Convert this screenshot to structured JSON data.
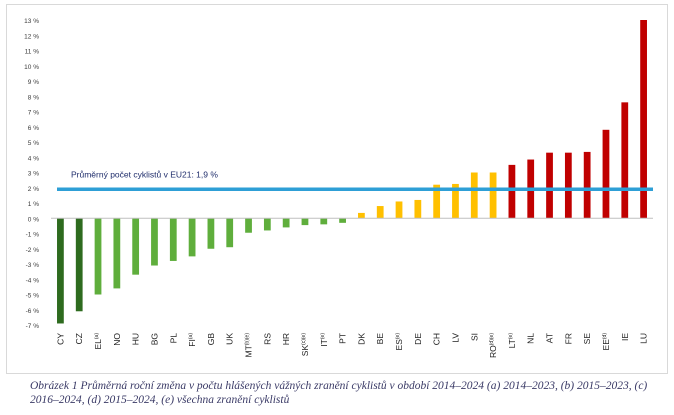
{
  "chart_data": {
    "type": "bar",
    "categories": [
      "CY",
      "CZ",
      "EL",
      "NO",
      "HU",
      "BG",
      "PL",
      "FI",
      "GB",
      "UK",
      "MT",
      "RS",
      "HR",
      "SK",
      "IT",
      "PT",
      "DK",
      "BE",
      "ES",
      "DE",
      "CH",
      "LV",
      "SI",
      "RO",
      "LT",
      "NL",
      "AT",
      "FR",
      "SE",
      "EE",
      "IE",
      "LU"
    ],
    "category_labels": [
      {
        "base": "CY",
        "sup": ""
      },
      {
        "base": "CZ",
        "sup": ""
      },
      {
        "base": "EL",
        "sup": "(a)"
      },
      {
        "base": "NO",
        "sup": ""
      },
      {
        "base": "HU",
        "sup": ""
      },
      {
        "base": "BG",
        "sup": ""
      },
      {
        "base": "PL",
        "sup": ""
      },
      {
        "base": "FI",
        "sup": "(a)"
      },
      {
        "base": "GB",
        "sup": ""
      },
      {
        "base": "UK",
        "sup": ""
      },
      {
        "base": "MT",
        "sup": "(b)(e)"
      },
      {
        "base": "RS",
        "sup": ""
      },
      {
        "base": "HR",
        "sup": ""
      },
      {
        "base": "SK",
        "sup": "(c)(e)"
      },
      {
        "base": "IT",
        "sup": "(e)"
      },
      {
        "base": "PT",
        "sup": ""
      },
      {
        "base": "DK",
        "sup": ""
      },
      {
        "base": "BE",
        "sup": ""
      },
      {
        "base": "ES",
        "sup": "(e)"
      },
      {
        "base": "DE",
        "sup": ""
      },
      {
        "base": "CH",
        "sup": ""
      },
      {
        "base": "LV",
        "sup": ""
      },
      {
        "base": "SI",
        "sup": ""
      },
      {
        "base": "RO",
        "sup": "(d)(e)"
      },
      {
        "base": "LT",
        "sup": "(e)"
      },
      {
        "base": "NL",
        "sup": ""
      },
      {
        "base": "AT",
        "sup": ""
      },
      {
        "base": "FR",
        "sup": ""
      },
      {
        "base": "SE",
        "sup": ""
      },
      {
        "base": "EE",
        "sup": "(d)"
      },
      {
        "base": "IE",
        "sup": ""
      },
      {
        "base": "LU",
        "sup": ""
      }
    ],
    "values": [
      -6.9,
      -6.1,
      -5.0,
      -4.6,
      -3.7,
      -3.1,
      -2.8,
      -2.5,
      -2.0,
      -1.9,
      -0.95,
      -0.8,
      -0.6,
      -0.45,
      -0.4,
      -0.3,
      0.35,
      0.8,
      1.1,
      1.2,
      2.2,
      2.25,
      3.0,
      3.0,
      3.5,
      3.85,
      4.3,
      4.3,
      4.35,
      5.8,
      7.6,
      13.0
    ],
    "bar_colors": [
      "#2e6b1f",
      "#2e6b1f",
      "#5fae3c",
      "#5fae3c",
      "#5fae3c",
      "#5fae3c",
      "#5fae3c",
      "#5fae3c",
      "#5fae3c",
      "#5fae3c",
      "#5fae3c",
      "#5fae3c",
      "#5fae3c",
      "#5fae3c",
      "#5fae3c",
      "#5fae3c",
      "#ffc000",
      "#ffc000",
      "#ffc000",
      "#ffc000",
      "#ffc000",
      "#ffc000",
      "#ffc000",
      "#ffc000",
      "#c00000",
      "#c00000",
      "#c00000",
      "#c00000",
      "#c00000",
      "#c00000",
      "#c00000",
      "#c00000"
    ],
    "ylim": [
      -7,
      13
    ],
    "yticks": [
      13,
      12,
      11,
      10,
      9,
      8,
      7,
      6,
      5,
      4,
      3,
      2,
      1,
      0,
      -1,
      -2,
      -3,
      -4,
      -5,
      -6,
      -7
    ],
    "ytick_labels": [
      "13 %",
      "12 %",
      "11 %",
      "10 %",
      "9 %",
      "8 %",
      "7 %",
      "6 %",
      "5 %",
      "4 %",
      "3 %",
      "2 %",
      "1 %",
      "0 %",
      "-1 %",
      "-2 %",
      "-3 %",
      "-4 %",
      "-5 %",
      "-6 %",
      "-7 %"
    ],
    "reference_line": {
      "value": 1.9,
      "label": "Průměrný počet cyklistů v EU21: 1,9 %",
      "color": "#2e9fd6"
    },
    "grid": false,
    "title": "",
    "xlabel": "",
    "ylabel": ""
  },
  "caption": "Obrázek 1 Průměrná roční změna v počtu hlášených vážných zranění cyklistů v období 2014–2024 (a) 2014–2023, (b) 2015–2023, (c) 2016–2024, (d) 2015–2024, (e) všechna zranění cyklistů"
}
